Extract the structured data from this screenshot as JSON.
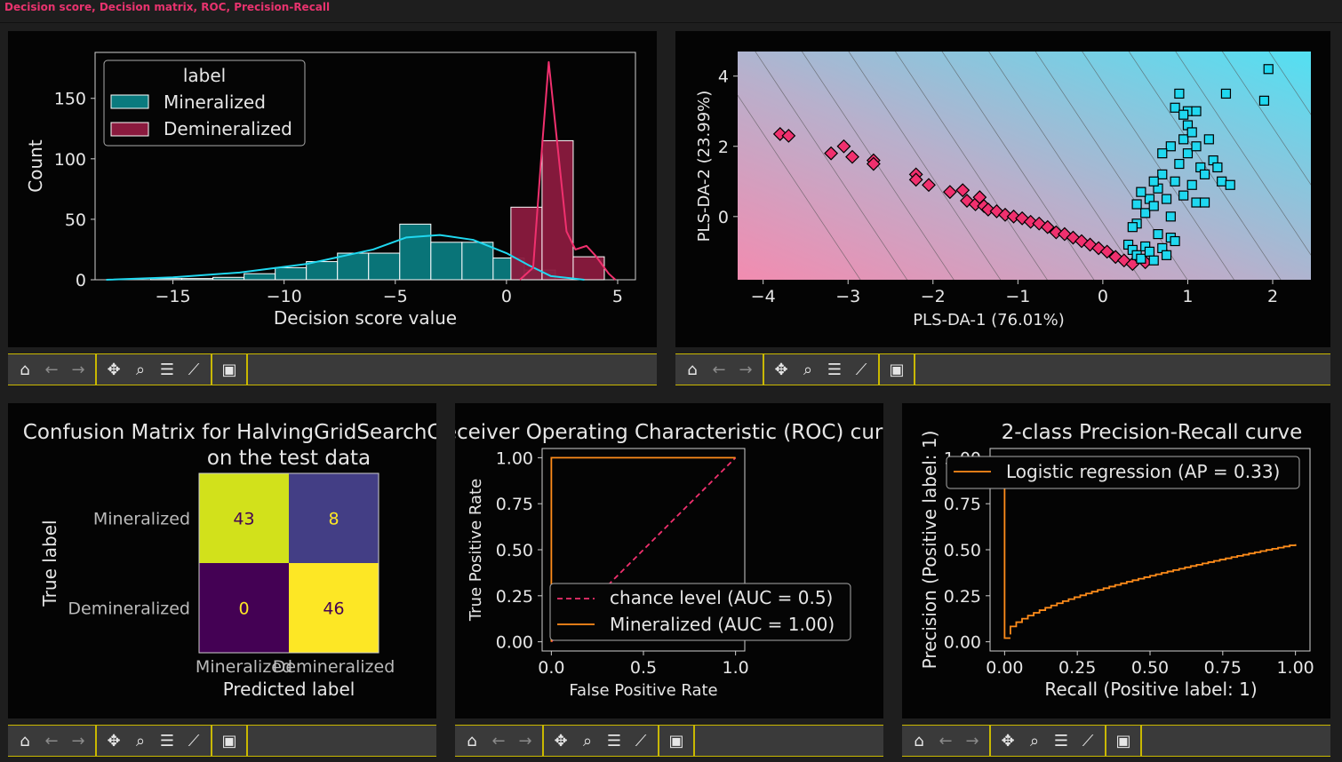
{
  "app": {
    "title": "Decision score, Decision matrix, ROC, Precision-Recall"
  },
  "colors": {
    "mineralized": "#1fd8f0",
    "demineralized": "#f0306e",
    "accent": "#e8336e",
    "toolbar_border": "#c9b800"
  },
  "toolbar": {
    "buttons": [
      "home-icon",
      "back-arrow-icon",
      "forward-arrow-icon",
      "pan-move-icon",
      "zoom-magnifier-icon",
      "configure-subplots-icon",
      "edit-axis-icon",
      "save-icon"
    ]
  },
  "histogram": {
    "xlabel": "Decision score value",
    "ylabel": "Count",
    "legend_title": "label",
    "legend": [
      "Mineralized",
      "Demineralized"
    ],
    "xticks": [
      "−15",
      "−10",
      "−5",
      "0",
      "5"
    ],
    "yticks": [
      "0",
      "50",
      "100",
      "150"
    ]
  },
  "scatter": {
    "xlabel": "PLS-DA-1 (76.01%)",
    "ylabel": "PLS-DA-2 (23.99%)",
    "xticks": [
      "−4",
      "−3",
      "−2",
      "−1",
      "0",
      "1",
      "2"
    ],
    "yticks": [
      "0",
      "2",
      "4"
    ]
  },
  "confusion": {
    "title_line1": "Confusion Matrix for HalvingGridSearchCV",
    "title_line2": "on the test data",
    "xlabel": "Predicted label",
    "ylabel": "True label",
    "classes": [
      "Mineralized",
      "Demineralized"
    ],
    "cells": [
      "43",
      "8",
      "0",
      "46"
    ]
  },
  "roc": {
    "title": "Receiver Operating Characteristic (ROC) curve",
    "xlabel": "False Positive Rate",
    "ylabel": "True Positive Rate",
    "xticks": [
      "0.0",
      "0.5",
      "1.0"
    ],
    "yticks": [
      "0.00",
      "0.25",
      "0.50",
      "0.75",
      "1.00"
    ],
    "legend": [
      "chance level (AUC = 0.5)",
      "Mineralized (AUC = 1.00)"
    ]
  },
  "pr": {
    "title": "2-class Precision-Recall curve",
    "xlabel": "Recall (Positive label: 1)",
    "ylabel": "Precision (Positive label: 1)",
    "xticks": [
      "0.00",
      "0.25",
      "0.50",
      "0.75",
      "1.00"
    ],
    "yticks": [
      "0.00",
      "0.25",
      "0.50",
      "0.75",
      "1.00"
    ],
    "legend": [
      "Logistic regression (AP = 0.33)"
    ]
  },
  "chart_data": [
    {
      "type": "bar",
      "title": "",
      "xlabel": "Decision score value",
      "ylabel": "Count",
      "xlim": [
        -18.5,
        5.8
      ],
      "ylim": [
        0,
        188
      ],
      "bin_edges": [
        -17.3,
        -14.4,
        -11.5,
        -8.6,
        -5.7,
        -2.9,
        0.0,
        2.9,
        5.8
      ],
      "series": [
        {
          "name": "Mineralized",
          "bins": [
            [
              -16.0,
              -14.6,
              1
            ],
            [
              -14.6,
              -13.2,
              1
            ],
            [
              -13.2,
              -11.8,
              2
            ],
            [
              -11.8,
              -10.4,
              5
            ],
            [
              -10.4,
              -9.0,
              10
            ],
            [
              -9.0,
              -7.6,
              15
            ],
            [
              -7.6,
              -6.2,
              22
            ],
            [
              -6.2,
              -4.8,
              22
            ],
            [
              -4.8,
              -3.4,
              46
            ],
            [
              -3.4,
              -2.0,
              31
            ],
            [
              -2.0,
              -0.6,
              31
            ],
            [
              -0.6,
              0.8,
              18
            ],
            [
              0.8,
              2.2,
              8
            ]
          ],
          "kde": [
            [
              -18.0,
              0
            ],
            [
              -15,
              2
            ],
            [
              -12,
              6
            ],
            [
              -9,
              13
            ],
            [
              -6,
              25
            ],
            [
              -4.5,
              35
            ],
            [
              -3,
              37
            ],
            [
              -1.5,
              33
            ],
            [
              0,
              22
            ],
            [
              1,
              12
            ],
            [
              2,
              3
            ],
            [
              3.5,
              0
            ]
          ]
        },
        {
          "name": "Demineralized",
          "bins": [
            [
              0.2,
              1.6,
              60
            ],
            [
              1.6,
              3.0,
              115
            ],
            [
              3.0,
              4.4,
              19
            ]
          ],
          "kde": [
            [
              0.6,
              0
            ],
            [
              1.2,
              10
            ],
            [
              1.6,
              110
            ],
            [
              1.9,
              180
            ],
            [
              2.3,
              110
            ],
            [
              2.7,
              40
            ],
            [
              3.1,
              25
            ],
            [
              3.6,
              28
            ],
            [
              4.0,
              20
            ],
            [
              4.6,
              5
            ],
            [
              4.9,
              0
            ]
          ]
        }
      ]
    },
    {
      "type": "scatter",
      "xlabel": "PLS-DA-1 (76.01%)",
      "ylabel": "PLS-DA-2 (23.99%)",
      "xlim": [
        -4.3,
        2.45
      ],
      "ylim": [
        -1.8,
        4.7
      ],
      "series": [
        {
          "name": "Demineralized",
          "points": [
            [
              -3.8,
              2.35
            ],
            [
              -3.7,
              2.3
            ],
            [
              -3.2,
              1.8
            ],
            [
              -3.05,
              2.0
            ],
            [
              -2.95,
              1.7
            ],
            [
              -2.7,
              1.6
            ],
            [
              -2.7,
              1.5
            ],
            [
              -2.2,
              1.2
            ],
            [
              -2.2,
              1.05
            ],
            [
              -2.05,
              0.9
            ],
            [
              -1.8,
              0.7
            ],
            [
              -1.65,
              0.75
            ],
            [
              -1.6,
              0.45
            ],
            [
              -1.5,
              0.35
            ],
            [
              -1.45,
              0.55
            ],
            [
              -1.4,
              0.3
            ],
            [
              -1.35,
              0.2
            ],
            [
              -1.25,
              0.15
            ],
            [
              -1.15,
              0.05
            ],
            [
              -1.05,
              0.0
            ],
            [
              -0.95,
              -0.05
            ],
            [
              -0.85,
              -0.15
            ],
            [
              -0.75,
              -0.2
            ],
            [
              -0.65,
              -0.3
            ],
            [
              -0.55,
              -0.45
            ],
            [
              -0.45,
              -0.5
            ],
            [
              -0.35,
              -0.6
            ],
            [
              -0.25,
              -0.7
            ],
            [
              -0.15,
              -0.8
            ],
            [
              -0.05,
              -0.9
            ],
            [
              0.05,
              -1.0
            ],
            [
              0.15,
              -1.15
            ],
            [
              0.25,
              -1.25
            ],
            [
              0.35,
              -1.35
            ],
            [
              0.5,
              -1.3
            ]
          ]
        },
        {
          "name": "Mineralized",
          "points": [
            [
              0.3,
              -0.8
            ],
            [
              0.35,
              -0.95
            ],
            [
              0.4,
              -1.1
            ],
            [
              0.45,
              -1.2
            ],
            [
              0.5,
              -0.85
            ],
            [
              0.55,
              -1.0
            ],
            [
              0.6,
              -1.25
            ],
            [
              0.65,
              -0.5
            ],
            [
              0.7,
              -0.9
            ],
            [
              0.75,
              -1.1
            ],
            [
              0.8,
              -0.6
            ],
            [
              0.85,
              -0.7
            ],
            [
              0.4,
              -0.2
            ],
            [
              0.5,
              0.1
            ],
            [
              0.55,
              0.5
            ],
            [
              0.6,
              0.3
            ],
            [
              0.65,
              0.8
            ],
            [
              0.7,
              1.2
            ],
            [
              0.75,
              0.5
            ],
            [
              0.8,
              0.0
            ],
            [
              0.85,
              1.0
            ],
            [
              0.9,
              1.5
            ],
            [
              0.95,
              0.6
            ],
            [
              1.0,
              1.8
            ],
            [
              1.05,
              0.9
            ],
            [
              1.1,
              0.4
            ],
            [
              1.15,
              1.4
            ],
            [
              0.95,
              2.2
            ],
            [
              1.0,
              2.6
            ],
            [
              1.05,
              2.4
            ],
            [
              1.1,
              2.0
            ],
            [
              1.2,
              1.2
            ],
            [
              0.9,
              3.5
            ],
            [
              1.0,
              3.0
            ],
            [
              0.85,
              3.1
            ],
            [
              0.8,
              2.0
            ],
            [
              0.7,
              1.8
            ],
            [
              0.6,
              1.0
            ],
            [
              1.25,
              2.2
            ],
            [
              1.3,
              1.6
            ],
            [
              1.2,
              0.4
            ],
            [
              0.45,
              0.7
            ],
            [
              0.4,
              0.35
            ],
            [
              0.35,
              -0.3
            ],
            [
              1.45,
              3.5
            ],
            [
              1.9,
              3.3
            ],
            [
              1.95,
              4.2
            ],
            [
              1.35,
              1.4
            ],
            [
              1.4,
              1.0
            ],
            [
              1.5,
              0.9
            ],
            [
              1.1,
              3.0
            ],
            [
              0.95,
              2.9
            ]
          ]
        }
      ]
    },
    {
      "type": "heatmap",
      "title": "Confusion Matrix for HalvingGridSearchCV on the test data",
      "xlabel": "Predicted label",
      "ylabel": "True label",
      "categories": [
        "Mineralized",
        "Demineralized"
      ],
      "values": [
        [
          43,
          8
        ],
        [
          0,
          46
        ]
      ]
    },
    {
      "type": "line",
      "title": "Receiver Operating Characteristic (ROC) curve",
      "xlabel": "False Positive Rate",
      "ylabel": "True Positive Rate",
      "xlim": [
        -0.05,
        1.05
      ],
      "ylim": [
        -0.05,
        1.05
      ],
      "series": [
        {
          "name": "chance level (AUC = 0.5)",
          "x": [
            0,
            1
          ],
          "y": [
            0,
            1
          ]
        },
        {
          "name": "Mineralized (AUC = 1.00)",
          "x": [
            0,
            0,
            1
          ],
          "y": [
            0,
            1,
            1
          ]
        }
      ]
    },
    {
      "type": "line",
      "title": "2-class Precision-Recall curve",
      "xlabel": "Recall (Positive label: 1)",
      "ylabel": "Precision (Positive label: 1)",
      "xlim": [
        -0.05,
        1.05
      ],
      "ylim": [
        -0.05,
        1.05
      ],
      "series": [
        {
          "name": "Logistic regression (AP = 0.33)",
          "x": [
            0,
            0,
            0.02,
            0.1,
            0.2,
            0.3,
            0.4,
            0.5,
            0.6,
            0.7,
            0.8,
            0.9,
            1.0
          ],
          "y": [
            1.0,
            0.02,
            0.04,
            0.1,
            0.17,
            0.23,
            0.29,
            0.34,
            0.39,
            0.43,
            0.47,
            0.5,
            0.53
          ]
        }
      ]
    }
  ]
}
